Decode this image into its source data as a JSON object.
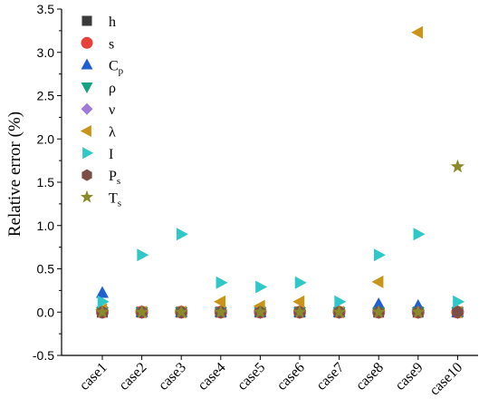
{
  "chart_data": {
    "type": "scatter",
    "categories": [
      "case1",
      "case2",
      "case3",
      "case4",
      "case5",
      "case6",
      "case7",
      "case8",
      "case9",
      "case10"
    ],
    "ylabel": "Relative error (%)",
    "xlabel": "",
    "ylim": [
      -0.5,
      3.5
    ],
    "yticks": [
      "-0.5",
      "0.0",
      "0.5",
      "1.0",
      "1.5",
      "2.0",
      "2.5",
      "3.0",
      "3.5"
    ],
    "grid": false,
    "legend_position": "top-left",
    "series": [
      {
        "name": "h",
        "label_main": "h",
        "label_sub": "",
        "marker": "square",
        "color": "#3a3a3a",
        "values": [
          0,
          0,
          0,
          0,
          0,
          0,
          0,
          0,
          0,
          0
        ]
      },
      {
        "name": "s",
        "label_main": "s",
        "label_sub": "",
        "marker": "circle",
        "color": "#e8403a",
        "values": [
          0,
          0,
          0,
          0,
          0,
          0,
          0,
          0,
          0,
          0
        ]
      },
      {
        "name": "Cp",
        "label_main": "C",
        "label_sub": "p",
        "marker": "triangle-up",
        "color": "#1f5fcf",
        "values": [
          0.22,
          0,
          0,
          0,
          0,
          0,
          0,
          0.09,
          0.07,
          0
        ]
      },
      {
        "name": "ρ",
        "label_main": "ρ",
        "label_sub": "",
        "marker": "triangle-down",
        "color": "#16a37f",
        "values": [
          0,
          0,
          0,
          0,
          0,
          0,
          0,
          0,
          0,
          0
        ]
      },
      {
        "name": "ν",
        "label_main": "ν",
        "label_sub": "",
        "marker": "diamond",
        "color": "#a07bd8",
        "values": [
          0,
          0,
          0,
          0,
          0,
          0,
          0,
          0,
          0,
          0
        ]
      },
      {
        "name": "λ",
        "label_main": "λ",
        "label_sub": "",
        "marker": "triangle-left",
        "color": "#c99418",
        "values": [
          0.03,
          0,
          0,
          0.12,
          0.07,
          0.12,
          0,
          0.35,
          3.23,
          0
        ]
      },
      {
        "name": "I",
        "label_main": "I",
        "label_sub": "",
        "marker": "triangle-right",
        "color": "#2fc7c7",
        "values": [
          0.12,
          0.66,
          0.9,
          0.34,
          0.29,
          0.34,
          0.12,
          0.66,
          0.9,
          0.12
        ]
      },
      {
        "name": "Ps",
        "label_main": "P",
        "label_sub": "s",
        "marker": "hexagon",
        "color": "#7b4f47",
        "values": [
          0,
          0,
          0,
          0,
          0,
          0,
          0,
          0,
          0,
          0
        ]
      },
      {
        "name": "Ts",
        "label_main": "T",
        "label_sub": "s",
        "marker": "star",
        "color": "#8a8a2a",
        "values": [
          0,
          0,
          0,
          0,
          0,
          0,
          0,
          0,
          0,
          1.68
        ]
      }
    ]
  }
}
